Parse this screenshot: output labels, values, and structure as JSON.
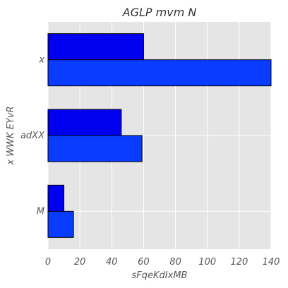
{
  "chart_data": {
    "type": "bar",
    "orientation": "horizontal",
    "title": "AGLP mvm N",
    "xlabel": "sFqeKdIxMB",
    "ylabel": "x WWK EYvR",
    "categories": [
      "M",
      "adXX",
      "x"
    ],
    "series": [
      {
        "values": [
          16,
          59,
          140
        ],
        "color": "#0a3cff"
      },
      {
        "values": [
          10,
          46,
          60
        ],
        "color": "#0000ee"
      }
    ],
    "xlim": [
      0,
      140
    ],
    "xticks": [
      0,
      20,
      40,
      60,
      80,
      100,
      120,
      140
    ],
    "grid": true,
    "legend": false,
    "background_color": "#e5e5e5",
    "grid_color": "#ffffff",
    "edge_color": "#000000"
  }
}
